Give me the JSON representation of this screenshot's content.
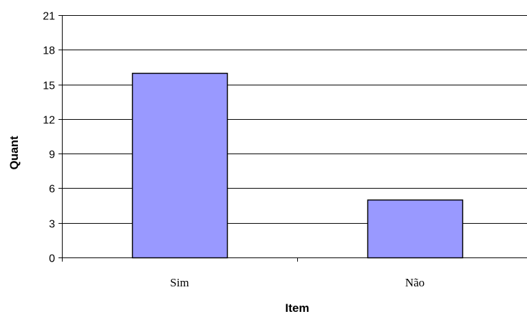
{
  "chart_data": {
    "type": "bar",
    "title": "",
    "xlabel": "Item",
    "ylabel": "Quant",
    "categories": [
      "Sim",
      "Não"
    ],
    "values": [
      16,
      5
    ],
    "ylim": [
      0,
      21
    ],
    "yticks": [
      0,
      3,
      6,
      9,
      12,
      15,
      18,
      21
    ],
    "grid": true,
    "legend": "none",
    "colors": {
      "bar_fill": "#9999ff",
      "bar_stroke": "#000000",
      "grid": "#000000",
      "axis": "#000000"
    }
  }
}
